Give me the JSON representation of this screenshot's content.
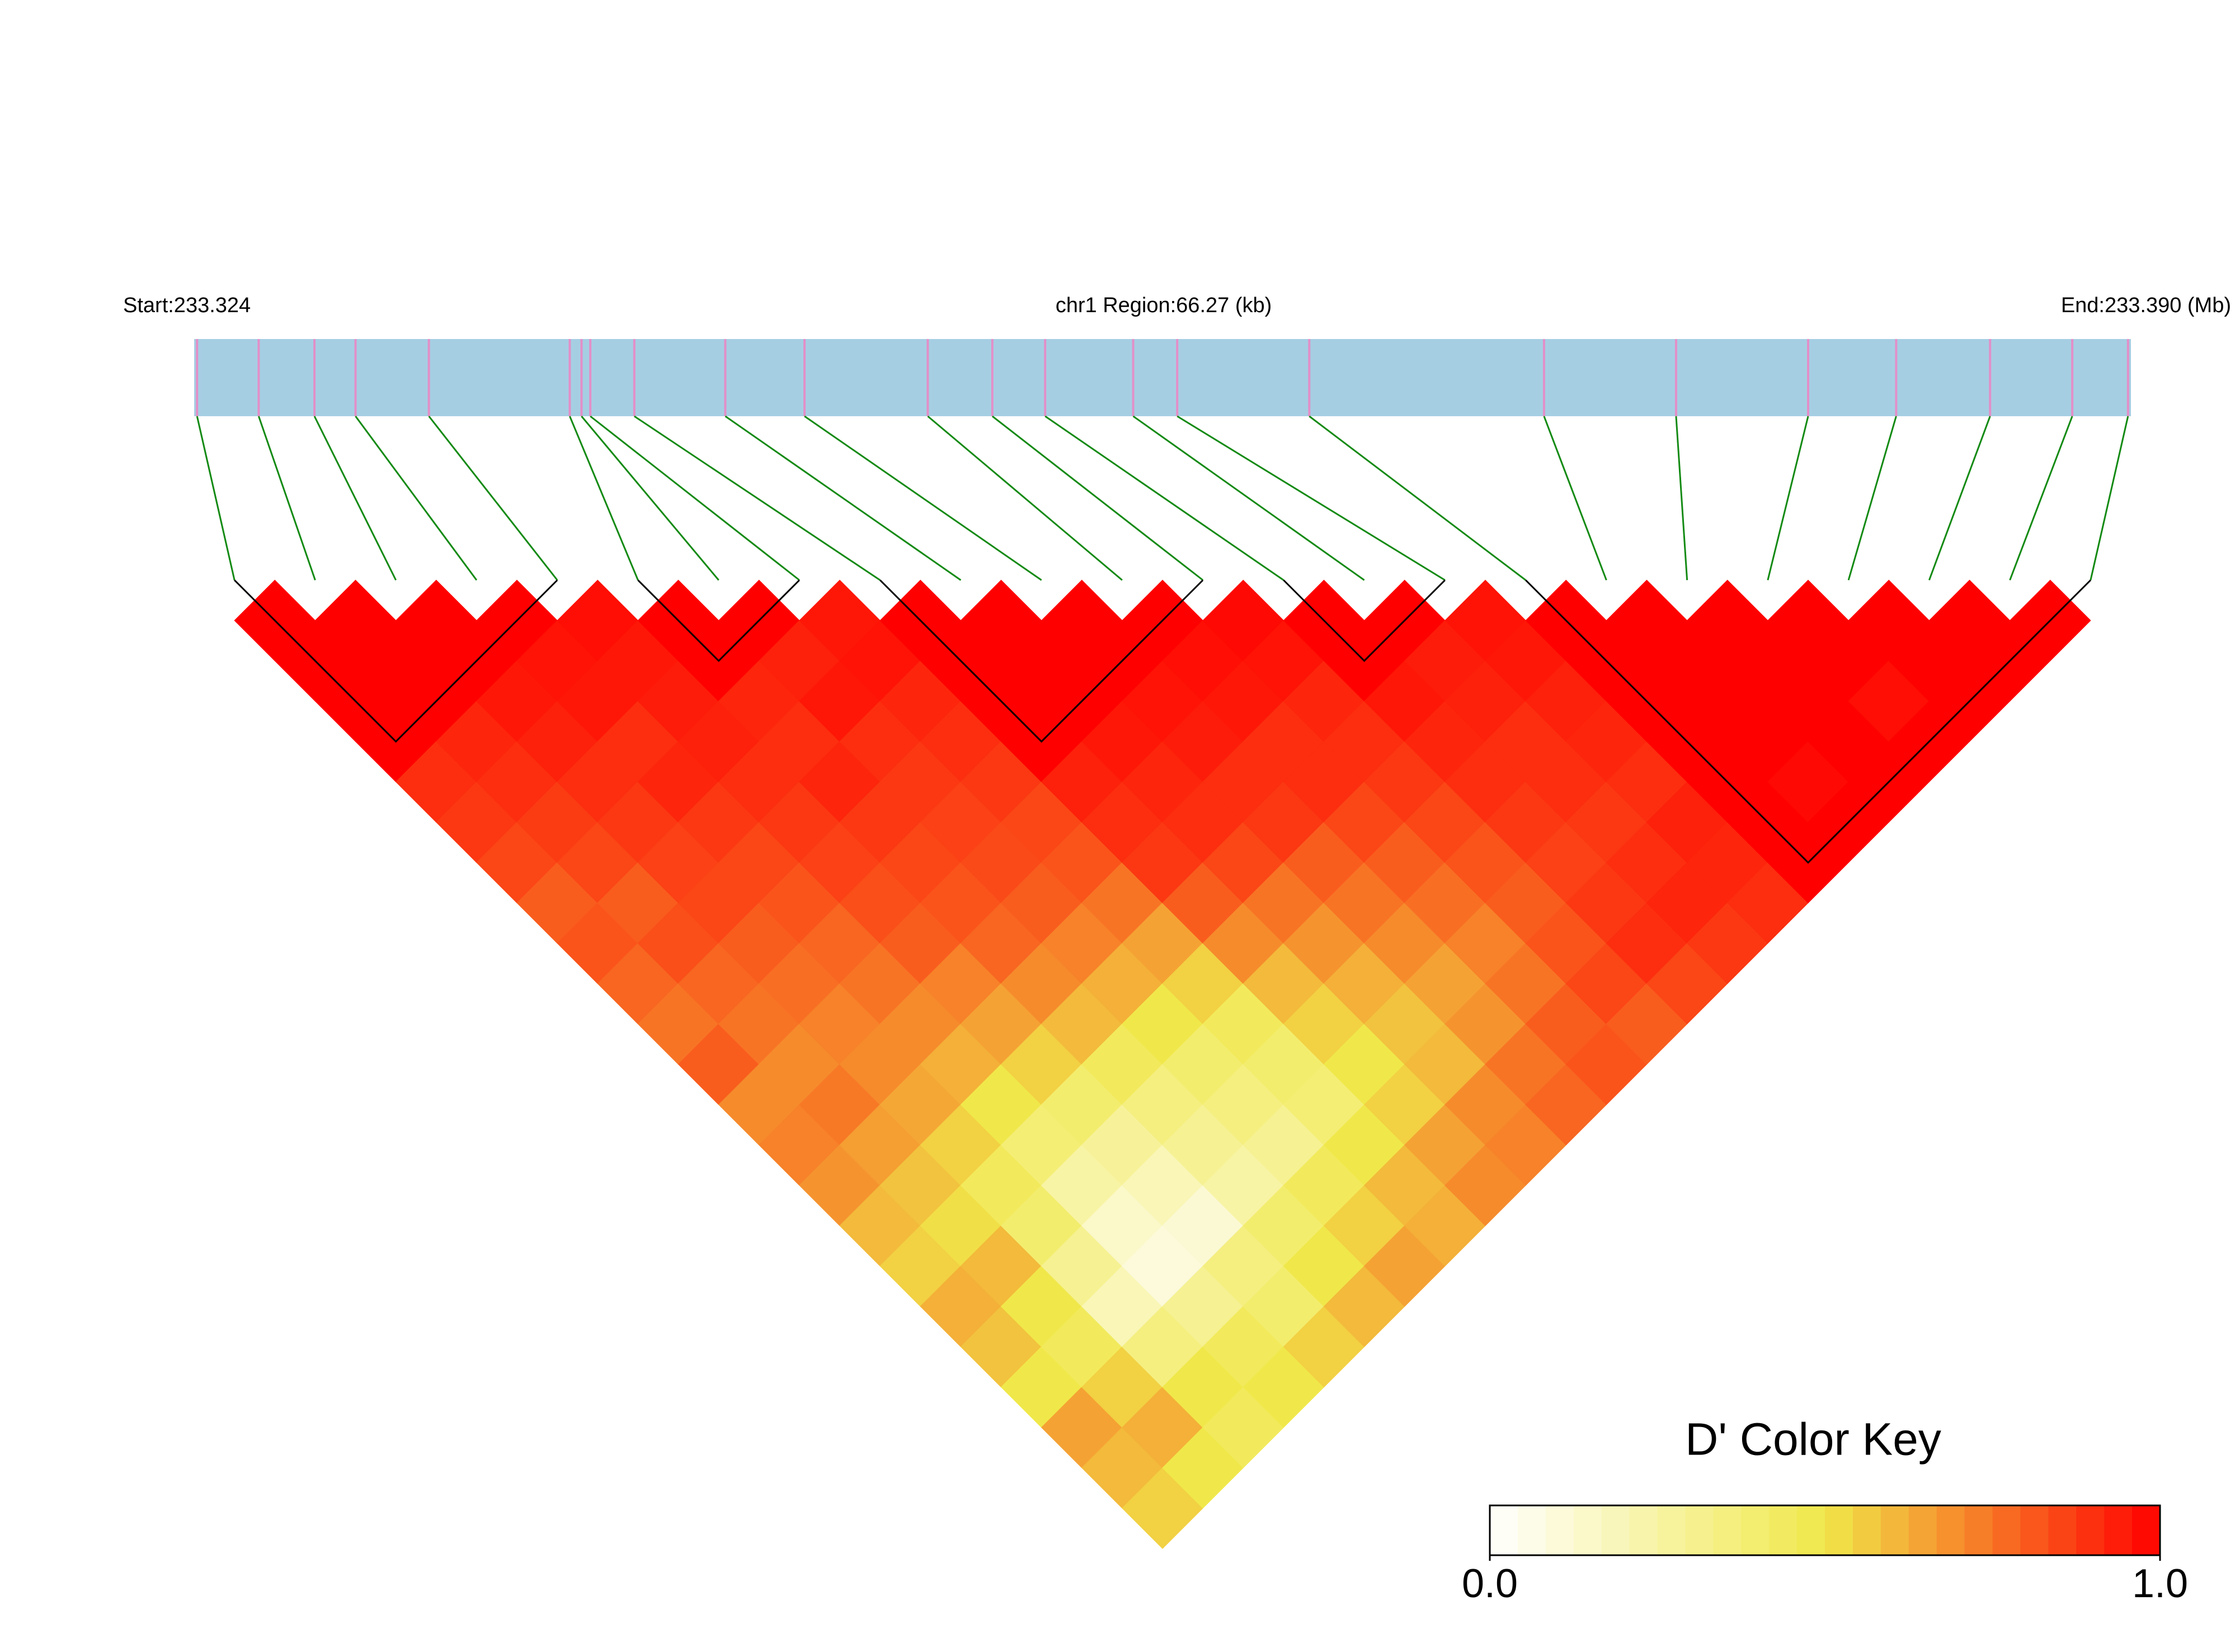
{
  "chart_data": {
    "type": "ld-heatmap",
    "start_label": "Start:233.324",
    "region_label": "chr1 Region:66.27 (kb)",
    "end_label": "End:233.390 (Mb)",
    "color_key_title": "D' Color Key",
    "xlim": [
      233.324,
      233.39
    ],
    "x": [
      233.3241,
      233.3262,
      233.3281,
      233.3295,
      233.332,
      233.3368,
      233.3372,
      233.3375,
      233.339,
      233.3421,
      233.3448,
      233.349,
      233.3512,
      233.353,
      233.356,
      233.3575,
      233.362,
      233.37,
      233.3745,
      233.379,
      233.382,
      233.3852,
      233.388,
      233.3899
    ],
    "dprime": [
      [
        1,
        1,
        1,
        1,
        0.9,
        0.88,
        0.85,
        0.8,
        0.82,
        0.78,
        0.75,
        0.8,
        0.7,
        0.72,
        0.68,
        0.6,
        0.55,
        0.62,
        0.58,
        0.5,
        0.65,
        0.6,
        0.55
      ],
      [
        1,
        1,
        1,
        0.92,
        0.9,
        0.87,
        0.85,
        0.8,
        0.83,
        0.78,
        0.75,
        0.7,
        0.74,
        0.66,
        0.58,
        0.52,
        0.6,
        0.5,
        0.45,
        0.55,
        0.62,
        0.5
      ],
      [
        1,
        1,
        0.95,
        0.93,
        0.9,
        0.88,
        0.86,
        0.85,
        0.8,
        0.76,
        0.72,
        0.7,
        0.64,
        0.55,
        0.45,
        0.4,
        0.3,
        0.2,
        0.35,
        0.5,
        0.45
      ],
      [
        1,
        0.96,
        0.95,
        0.9,
        0.92,
        0.88,
        0.85,
        0.82,
        0.78,
        0.75,
        0.7,
        0.62,
        0.5,
        0.38,
        0.25,
        0.15,
        0.1,
        0.3,
        0.45,
        0.5
      ],
      [
        0.97,
        0.95,
        0.94,
        0.93,
        0.9,
        0.88,
        0.86,
        0.83,
        0.8,
        0.72,
        0.65,
        0.55,
        0.4,
        0.28,
        0.2,
        0.12,
        0.35,
        0.4,
        0.55
      ],
      [
        1,
        1,
        0.92,
        0.9,
        0.92,
        0.88,
        0.85,
        0.82,
        0.78,
        0.7,
        0.6,
        0.45,
        0.35,
        0.3,
        0.25,
        0.4,
        0.5,
        0.6
      ],
      [
        1,
        0.93,
        0.95,
        0.9,
        0.88,
        0.86,
        0.84,
        0.8,
        0.72,
        0.62,
        0.5,
        0.4,
        0.35,
        0.3,
        0.45,
        0.55,
        0.65
      ],
      [
        0.95,
        0.96,
        0.92,
        0.9,
        0.88,
        0.85,
        0.82,
        0.75,
        0.65,
        0.55,
        0.45,
        0.4,
        0.38,
        0.5,
        0.6,
        0.62
      ],
      [
        1,
        1,
        1,
        1,
        0.93,
        0.9,
        0.88,
        0.8,
        0.7,
        0.6,
        0.55,
        0.5,
        0.55,
        0.65,
        0.7
      ],
      [
        1,
        1,
        1,
        0.95,
        0.92,
        0.9,
        0.85,
        0.75,
        0.68,
        0.62,
        0.58,
        0.6,
        0.7,
        0.72
      ],
      [
        1,
        1,
        0.96,
        0.94,
        0.9,
        0.88,
        0.8,
        0.75,
        0.7,
        0.65,
        0.68,
        0.75,
        0.78
      ],
      [
        1,
        0.97,
        0.95,
        0.9,
        0.9,
        0.85,
        0.8,
        0.76,
        0.72,
        0.75,
        0.8,
        0.82
      ],
      [
        0.98,
        0.96,
        0.92,
        0.9,
        0.88,
        0.85,
        0.82,
        0.8,
        0.82,
        0.85,
        0.8
      ],
      [
        1,
        1,
        0.95,
        0.92,
        0.9,
        0.88,
        0.86,
        0.88,
        0.9,
        0.85
      ],
      [
        1,
        0.94,
        0.93,
        0.9,
        0.9,
        0.88,
        0.9,
        0.92,
        0.88
      ],
      [
        0.96,
        0.95,
        0.93,
        0.92,
        0.9,
        0.93,
        0.92,
        0.9
      ],
      [
        1,
        1,
        1,
        1,
        1,
        1,
        1
      ],
      [
        1,
        1,
        1,
        1,
        0.98,
        1
      ],
      [
        1,
        1,
        1,
        1,
        1
      ],
      [
        1,
        1,
        0.97,
        1
      ],
      [
        1,
        1,
        1
      ],
      [
        1,
        1
      ],
      [
        1
      ]
    ],
    "blocks": [
      [
        0,
        4
      ],
      [
        5,
        7
      ],
      [
        8,
        12
      ],
      [
        13,
        15
      ],
      [
        16,
        23
      ]
    ],
    "colors": [
      "#ffffff",
      "#f0e84a",
      "#ff0000"
    ],
    "bar_color": "#a6cee3",
    "snp_color": "#e38fc8",
    "link_color": "#138a13",
    "clim": [
      0,
      1
    ],
    "cticks": [
      {
        "value": 0,
        "label": "0.0"
      },
      {
        "value": 1,
        "label": "1.0"
      }
    ]
  }
}
